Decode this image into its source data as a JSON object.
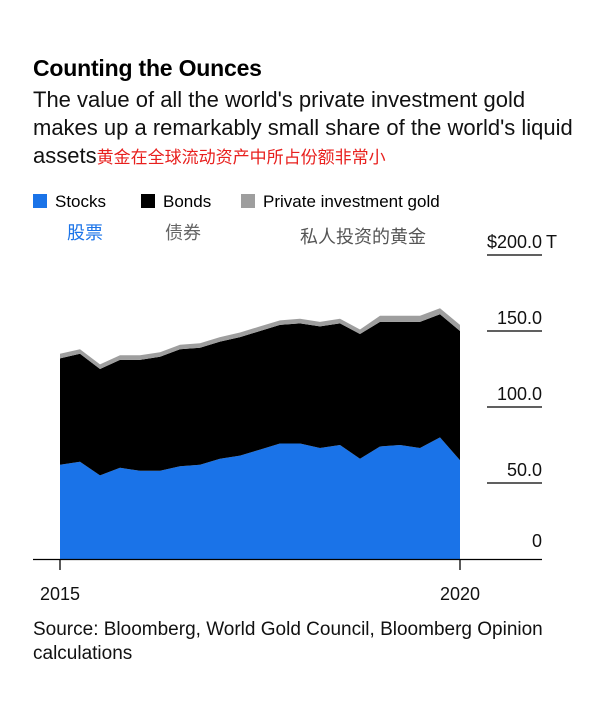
{
  "header": {
    "title": "Counting the Ounces",
    "subtitle": "The value of all the world's private investment gold makes up a remarkably small share of the world's liquid assets",
    "annotation_cn": "黄金在全球流动资产中所占份额非常小"
  },
  "legend": {
    "items": [
      {
        "label": "Stocks",
        "label_cn": "股票",
        "color": "#1a73e8"
      },
      {
        "label": "Bonds",
        "label_cn": "债券",
        "color": "#000000"
      },
      {
        "label": "Private investment gold",
        "label_cn": "私人投资的黄金",
        "color": "#9e9e9e"
      }
    ]
  },
  "source": "Source: Bloomberg, World Gold Council, Bloomberg Opinion calculations",
  "chart_data": {
    "type": "area",
    "stacked": true,
    "x": [
      2015.0,
      2015.25,
      2015.5,
      2015.75,
      2016.0,
      2016.25,
      2016.5,
      2016.75,
      2017.0,
      2017.25,
      2017.5,
      2017.75,
      2018.0,
      2018.25,
      2018.5,
      2018.75,
      2019.0,
      2019.25,
      2019.5,
      2019.75,
      2020.0
    ],
    "series": [
      {
        "name": "Stocks",
        "values": [
          62,
          64,
          55,
          60,
          58,
          58,
          61,
          62,
          66,
          68,
          72,
          76,
          76,
          73,
          75,
          66,
          74,
          75,
          73,
          80,
          65
        ]
      },
      {
        "name": "Bonds",
        "values": [
          70,
          71,
          70,
          71,
          73,
          75,
          77,
          77,
          77,
          78,
          78,
          78,
          79,
          80,
          80,
          82,
          82,
          81,
          83,
          81,
          85
        ]
      },
      {
        "name": "Private investment gold",
        "values": [
          3,
          3,
          3,
          3,
          3,
          3,
          3,
          3,
          3,
          3,
          3,
          3,
          3,
          3,
          3,
          3,
          4,
          4,
          4,
          4,
          4
        ]
      }
    ],
    "xticks": [
      "2015",
      "2020"
    ],
    "yticks": [
      "0",
      "50.0",
      "100.0",
      "150.0",
      "$200.0"
    ],
    "y_unit": "T",
    "ylim": [
      0,
      200
    ],
    "xlim": [
      2015,
      2020
    ],
    "grid": true
  }
}
